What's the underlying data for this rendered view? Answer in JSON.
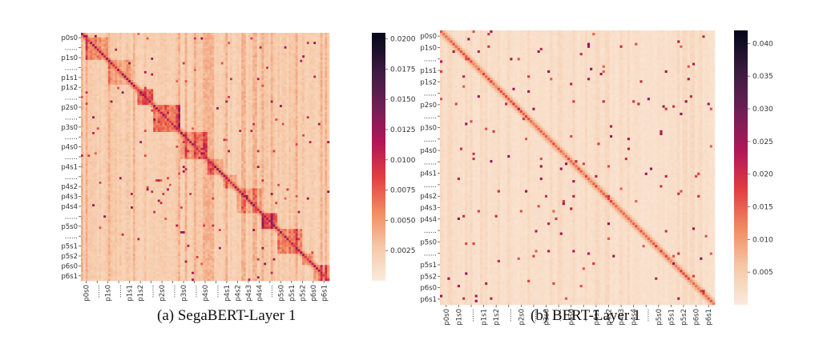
{
  "chart_data": [
    {
      "type": "heatmap",
      "caption": "(a)  SegaBERT-Layer 1",
      "row_labels": [
        "p0s0",
        "......",
        "p1s0",
        "......",
        "p1s1",
        "p1s2",
        "......",
        "p2s0",
        "......",
        "p3s0",
        "......",
        "p4s0",
        "......",
        "p4s1",
        "......",
        "p4s2",
        "p4s3",
        "p4s4",
        "......",
        "p5s0",
        "......",
        "p5s1",
        "p5s2",
        "p6s0",
        "p6s1"
      ],
      "col_labels": [
        "p0s0",
        "......",
        "p1s0",
        "......",
        "p1s1",
        "p1s2",
        "......",
        "p2s0",
        "......",
        "p3s0",
        "......",
        "p4s0",
        "......",
        "p4s1",
        "p4s2",
        "p4s3",
        "p4s4",
        "......",
        "p5s0",
        "p5s1",
        "p5s2",
        "p6s0",
        "p6s1"
      ],
      "segments": [
        0.0,
        0.018,
        0.105,
        0.21,
        0.228,
        0.29,
        0.4,
        0.51,
        0.57,
        0.625,
        0.73,
        0.79,
        0.89,
        0.94,
        1.0
      ],
      "block_values": [
        0.0045,
        0.0055,
        0.0045,
        0.0048,
        0.0085,
        0.0072,
        0.0058,
        0.0052,
        0.005,
        0.0047,
        0.0078,
        0.006,
        0.0058,
        0.0058
      ],
      "background_value": 0.0025,
      "diagonal_value": 0.011,
      "colorbar": {
        "min": 0.0,
        "max": 0.0205,
        "ticks": [
          0.0025,
          0.005,
          0.0075,
          0.01,
          0.0125,
          0.015,
          0.0175,
          0.02
        ],
        "tick_labels": [
          "0.0025",
          "0.0050",
          "0.0075",
          "0.0100",
          "0.0125",
          "0.0150",
          "0.0175",
          "0.0200"
        ]
      }
    },
    {
      "type": "heatmap",
      "caption": "(b)  BERT-Layer 1",
      "row_labels": [
        "p0s0",
        "p1s0",
        "......",
        "p1s1",
        "p1s2",
        "......",
        "p2s0",
        "......",
        "p3s0",
        "......",
        "p4s0",
        "......",
        "p4s1",
        "......",
        "p4s2",
        "p4s3",
        "p4s4",
        "......",
        "p5s0",
        "......",
        "p5s1",
        "p5s2",
        "p6s0",
        "p6s1"
      ],
      "col_labels": [
        "p0s0",
        "p1s0",
        "......",
        "p1s1",
        "p1s2",
        "......",
        "p2s0",
        "......",
        "p3s0",
        "......",
        "p4s0",
        "......",
        "p4s1",
        "p4s2",
        "p4s3",
        "p4s4",
        "......",
        "p5s0",
        "p5s1",
        "p5s2",
        "p6s0",
        "p6s1"
      ],
      "background_value": 0.002,
      "diagonal_value": 0.015,
      "colorbar": {
        "min": 0.0,
        "max": 0.042,
        "ticks": [
          0.005,
          0.01,
          0.015,
          0.02,
          0.025,
          0.03,
          0.035,
          0.04
        ],
        "tick_labels": [
          "0.005",
          "0.010",
          "0.015",
          "0.020",
          "0.025",
          "0.030",
          "0.035",
          "0.040"
        ]
      }
    }
  ]
}
